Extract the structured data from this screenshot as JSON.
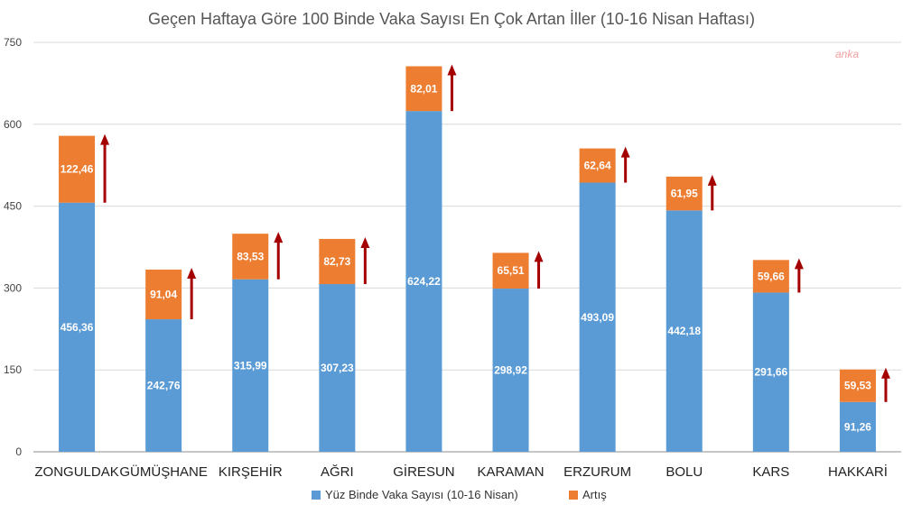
{
  "watermark": "anka",
  "colors": {
    "base": "#5b9bd5",
    "increase": "#ed7d31",
    "arrow": "#a50000",
    "grid": "#d9d9d9",
    "axis": "#8c8c8c"
  },
  "chart_data": {
    "type": "bar",
    "stacked": true,
    "title": "Geçen Haftaya Göre 100 Binde Vaka Sayısı En Çok Artan İller (10-16 Nisan Haftası)",
    "xlabel": "",
    "ylabel": "",
    "ylim": [
      0,
      750
    ],
    "yticks": [
      "0",
      "150",
      "300",
      "450",
      "600",
      "750"
    ],
    "grid": true,
    "legend_position": "bottom",
    "categories": [
      "ZONGULDAK",
      "GÜMÜŞHANE",
      "KIRŞEHİR",
      "AĞRI",
      "GİRESUN",
      "KARAMAN",
      "ERZURUM",
      "BOLU",
      "KARS",
      "HAKKARİ"
    ],
    "series": [
      {
        "name": "Yüz Binde Vaka Sayısı (10-16 Nisan)",
        "color": "#5b9bd5",
        "values": [
          456.36,
          242.76,
          315.99,
          307.23,
          624.22,
          298.92,
          493.09,
          442.18,
          291.66,
          91.26
        ],
        "labels": [
          "456,36",
          "242,76",
          "315,99",
          "307,23",
          "624,22",
          "298,92",
          "493,09",
          "442,18",
          "291,66",
          "91,26"
        ]
      },
      {
        "name": "Artış",
        "color": "#ed7d31",
        "values": [
          122.46,
          91.04,
          83.53,
          82.73,
          82.01,
          65.51,
          62.64,
          61.95,
          59.66,
          59.53
        ],
        "labels": [
          "122,46",
          "91,04",
          "83,53",
          "82,73",
          "82,01",
          "65,51",
          "62,64",
          "61,95",
          "59,66",
          "59,53"
        ]
      }
    ]
  }
}
